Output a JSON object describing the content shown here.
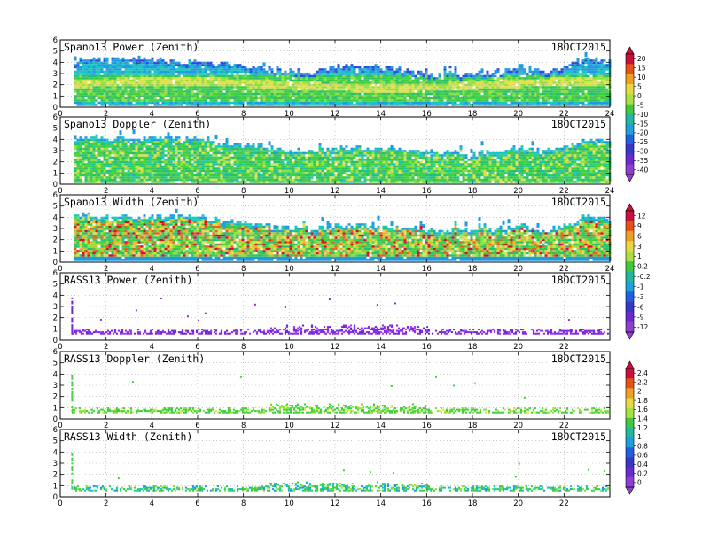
{
  "chart_data": [
    {
      "type": "heatmap",
      "title": "Spano13 Power (Zenith)",
      "date": "18OCT2015",
      "xlim": [
        0,
        24
      ],
      "ylim": [
        0,
        6
      ],
      "xticks": [
        "0",
        "2",
        "4",
        "6",
        "8",
        "10",
        "12",
        "14",
        "16",
        "18",
        "20",
        "22",
        "24"
      ],
      "yticks": [
        "0",
        "1",
        "2",
        "3",
        "4",
        "5",
        "6"
      ],
      "grid": true,
      "colorbar": {
        "ticks": [
          "20",
          "15",
          "10",
          "5",
          "0",
          "-5",
          "-10",
          "-15",
          "-20",
          "-25",
          "-30",
          "-35",
          "-40"
        ],
        "top_color": "#c8103a",
        "bottom_color": "#8f3fd0"
      },
      "field": "power",
      "data_top_km": [
        [
          0,
          3.6
        ],
        [
          1,
          4.2
        ],
        [
          2,
          4.2
        ],
        [
          3,
          4.2
        ],
        [
          4,
          4.2
        ],
        [
          5,
          4.0
        ],
        [
          6,
          4.0
        ],
        [
          7,
          3.8
        ],
        [
          8,
          3.6
        ],
        [
          9,
          3.3
        ],
        [
          10,
          3.2
        ],
        [
          11,
          3.0
        ],
        [
          12,
          3.5
        ],
        [
          13,
          3.5
        ],
        [
          14,
          3.5
        ],
        [
          15,
          3.2
        ],
        [
          16,
          2.8
        ],
        [
          17,
          2.8
        ],
        [
          18,
          2.8
        ],
        [
          19,
          3.0
        ],
        [
          20,
          3.5
        ],
        [
          21,
          3.0
        ],
        [
          22,
          3.5
        ],
        [
          23,
          4.2
        ],
        [
          24,
          4.0
        ]
      ]
    },
    {
      "type": "heatmap",
      "title": "Spano13 Doppler (Zenith)",
      "date": "18OCT2015",
      "xlim": [
        0,
        24
      ],
      "ylim": [
        0,
        6
      ],
      "xticks": [
        "0",
        "2",
        "4",
        "6",
        "8",
        "10",
        "12",
        "14",
        "16",
        "18",
        "20",
        "22",
        "24"
      ],
      "yticks": [
        "0",
        "1",
        "2",
        "3",
        "4",
        "5",
        "6"
      ],
      "grid": true,
      "field": "doppler",
      "data_top_km": [
        [
          0,
          3.6
        ],
        [
          1,
          4.2
        ],
        [
          2,
          4.0
        ],
        [
          3,
          4.0
        ],
        [
          4,
          4.0
        ],
        [
          5,
          4.0
        ],
        [
          6,
          4.0
        ],
        [
          7,
          3.6
        ],
        [
          8,
          3.4
        ],
        [
          9,
          3.2
        ],
        [
          10,
          3.0
        ],
        [
          11,
          2.8
        ],
        [
          12,
          3.2
        ],
        [
          13,
          3.2
        ],
        [
          14,
          3.0
        ],
        [
          15,
          3.0
        ],
        [
          16,
          2.8
        ],
        [
          17,
          2.8
        ],
        [
          18,
          2.6
        ],
        [
          19,
          2.8
        ],
        [
          20,
          3.2
        ],
        [
          21,
          2.8
        ],
        [
          22,
          3.2
        ],
        [
          23,
          4.0
        ],
        [
          24,
          3.8
        ]
      ]
    },
    {
      "type": "heatmap",
      "title": "Spano13 Width (Zenith)",
      "date": "18OCT2015",
      "xlim": [
        0,
        24
      ],
      "ylim": [
        0,
        6
      ],
      "xticks": [
        "0",
        "2",
        "4",
        "6",
        "8",
        "10",
        "12",
        "14",
        "16",
        "18",
        "20",
        "22",
        "24"
      ],
      "yticks": [
        "0",
        "1",
        "2",
        "3",
        "4",
        "5",
        "6"
      ],
      "grid": true,
      "colorbar": {
        "ticks": [
          "12",
          "9",
          "6",
          "3",
          "1",
          "0.2",
          "-0.2",
          "-1",
          "-3",
          "-6",
          "-9",
          "-12"
        ],
        "top_color": "#c8103a",
        "bottom_color": "#8f3fd0"
      },
      "field": "width",
      "data_top_km": [
        [
          0,
          3.6
        ],
        [
          1,
          4.2
        ],
        [
          2,
          4.0
        ],
        [
          3,
          4.0
        ],
        [
          4,
          4.0
        ],
        [
          5,
          4.0
        ],
        [
          6,
          4.0
        ],
        [
          7,
          3.6
        ],
        [
          8,
          3.4
        ],
        [
          9,
          3.2
        ],
        [
          10,
          3.0
        ],
        [
          11,
          2.8
        ],
        [
          12,
          3.2
        ],
        [
          13,
          3.2
        ],
        [
          14,
          3.0
        ],
        [
          15,
          3.0
        ],
        [
          16,
          2.8
        ],
        [
          17,
          2.8
        ],
        [
          18,
          2.6
        ],
        [
          19,
          2.8
        ],
        [
          20,
          3.2
        ],
        [
          21,
          2.8
        ],
        [
          22,
          3.2
        ],
        [
          23,
          4.0
        ],
        [
          24,
          3.8
        ]
      ]
    },
    {
      "type": "heatmap",
      "title": "RASS13 Power (Zenith)",
      "date": "18OCT2015",
      "xlim": [
        0,
        24
      ],
      "ylim": [
        0,
        6
      ],
      "xticks": [
        "0",
        "2",
        "4",
        "6",
        "8",
        "10",
        "12",
        "14",
        "16",
        "18",
        "20",
        "22"
      ],
      "yticks": [
        "0",
        "1",
        "2",
        "3",
        "4",
        "5",
        "6"
      ],
      "grid": true,
      "field": "rass_power",
      "data_band_km": [
        0.5,
        1.3
      ]
    },
    {
      "type": "heatmap",
      "title": "RASS13 Doppler (Zenith)",
      "date": "18OCT2015",
      "xlim": [
        0,
        24
      ],
      "ylim": [
        0,
        6
      ],
      "xticks": [
        "0",
        "2",
        "4",
        "6",
        "8",
        "10",
        "12",
        "14",
        "16",
        "18",
        "20",
        "22"
      ],
      "yticks": [
        "0",
        "1",
        "2",
        "3",
        "4",
        "5",
        "6"
      ],
      "grid": true,
      "colorbar": {
        "ticks": [
          "2.4",
          "2.2",
          "2",
          "1.8",
          "1.6",
          "1.4",
          "1.2",
          "1",
          "0.8",
          "0.6",
          "0.4",
          "0.2",
          "0"
        ],
        "top_color": "#c8103a",
        "bottom_color": "#8f3fd0"
      },
      "field": "rass_doppler",
      "data_band_km": [
        0.5,
        1.3
      ]
    },
    {
      "type": "heatmap",
      "title": "RASS13 Width (Zenith)",
      "date": "18OCT2015",
      "xlim": [
        0,
        24
      ],
      "ylim": [
        0,
        6
      ],
      "xticks": [
        "0",
        "2",
        "4",
        "6",
        "8",
        "10",
        "12",
        "14",
        "16",
        "18",
        "20",
        "22"
      ],
      "yticks": [
        "0",
        "1",
        "2",
        "3",
        "4",
        "5",
        "6"
      ],
      "grid": true,
      "field": "rass_width",
      "data_band_km": [
        0.5,
        1.3
      ]
    }
  ]
}
